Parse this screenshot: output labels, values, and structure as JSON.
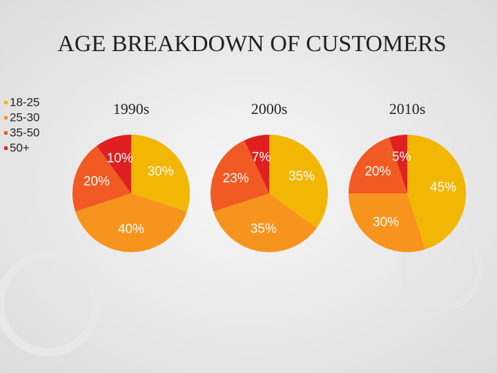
{
  "title": "AGE BREAKDOWN OF CUSTOMERS",
  "chart_data": [
    {
      "type": "pie",
      "title": "1990s",
      "categories": [
        "18-25",
        "25-30",
        "35-50",
        "50+"
      ],
      "colors": [
        "#f2b705",
        "#f7941d",
        "#f15a22",
        "#e02020"
      ],
      "values": [
        30,
        40,
        20,
        10
      ],
      "value_labels": [
        "30%",
        "40%",
        "20%",
        "10%"
      ]
    },
    {
      "type": "pie",
      "title": "2000s",
      "categories": [
        "18-25",
        "25-30",
        "35-50",
        "50+"
      ],
      "colors": [
        "#f2b705",
        "#f7941d",
        "#f15a22",
        "#e02020"
      ],
      "values": [
        35,
        35,
        23,
        7
      ],
      "value_labels": [
        "35%",
        "35%",
        "23%",
        "7%"
      ]
    },
    {
      "type": "pie",
      "title": "2010s",
      "categories": [
        "18-25",
        "25-30",
        "35-50",
        "50+"
      ],
      "colors": [
        "#f2b705",
        "#f7941d",
        "#f15a22",
        "#e02020"
      ],
      "values": [
        45,
        30,
        20,
        5
      ],
      "value_labels": [
        "45%",
        "30%",
        "20%",
        "5%"
      ]
    }
  ]
}
